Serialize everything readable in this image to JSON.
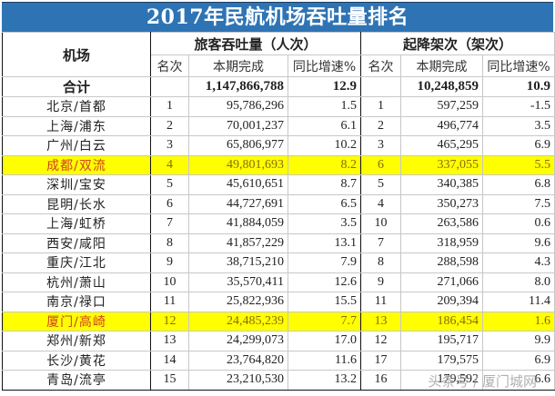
{
  "title": "2017年民航机场吞吐量排名",
  "header": {
    "airport_col": "机场",
    "passenger_group": "旅客吞吐量（人次）",
    "movement_group": "起降架次（架次）",
    "sub": {
      "rank": "名次",
      "current": "本期完成",
      "growth": "同比增速%"
    }
  },
  "total": {
    "label": "合计",
    "passengers": "1,147,866,788",
    "passenger_growth": "12.9",
    "movements": "10,248,859",
    "movement_growth": "10.9"
  },
  "highlight_colors": {
    "row_background": "#ffff00",
    "airport_name": "#d0431e",
    "title_bar": "#2e74b5"
  },
  "rows": [
    {
      "airport": "北京/首都",
      "p_rank": "1",
      "passengers": "95,786,296",
      "p_growth": "1.5",
      "m_rank": "1",
      "movements": "597,259",
      "m_growth": "-1.5",
      "highlight": false
    },
    {
      "airport": "上海/浦东",
      "p_rank": "2",
      "passengers": "70,001,237",
      "p_growth": "6.1",
      "m_rank": "2",
      "movements": "496,774",
      "m_growth": "3.5",
      "highlight": false
    },
    {
      "airport": "广州/白云",
      "p_rank": "3",
      "passengers": "65,806,977",
      "p_growth": "10.2",
      "m_rank": "3",
      "movements": "465,295",
      "m_growth": "6.9",
      "highlight": false
    },
    {
      "airport": "成都/双流",
      "p_rank": "4",
      "passengers": "49,801,693",
      "p_growth": "8.2",
      "m_rank": "6",
      "movements": "337,055",
      "m_growth": "5.5",
      "highlight": true
    },
    {
      "airport": "深圳/宝安",
      "p_rank": "5",
      "passengers": "45,610,651",
      "p_growth": "8.7",
      "m_rank": "5",
      "movements": "340,385",
      "m_growth": "6.8",
      "highlight": false
    },
    {
      "airport": "昆明/长水",
      "p_rank": "6",
      "passengers": "44,727,691",
      "p_growth": "6.5",
      "m_rank": "4",
      "movements": "350,273",
      "m_growth": "7.5",
      "highlight": false
    },
    {
      "airport": "上海/虹桥",
      "p_rank": "7",
      "passengers": "41,884,059",
      "p_growth": "3.5",
      "m_rank": "10",
      "movements": "263,586",
      "m_growth": "0.6",
      "highlight": false
    },
    {
      "airport": "西安/咸阳",
      "p_rank": "8",
      "passengers": "41,857,229",
      "p_growth": "13.1",
      "m_rank": "7",
      "movements": "318,959",
      "m_growth": "9.6",
      "highlight": false
    },
    {
      "airport": "重庆/江北",
      "p_rank": "9",
      "passengers": "38,715,210",
      "p_growth": "7.9",
      "m_rank": "8",
      "movements": "288,598",
      "m_growth": "4.3",
      "highlight": false
    },
    {
      "airport": "杭州/萧山",
      "p_rank": "10",
      "passengers": "35,570,411",
      "p_growth": "12.6",
      "m_rank": "9",
      "movements": "271,066",
      "m_growth": "8.0",
      "highlight": false
    },
    {
      "airport": "南京/禄口",
      "p_rank": "11",
      "passengers": "25,822,936",
      "p_growth": "15.5",
      "m_rank": "11",
      "movements": "209,394",
      "m_growth": "11.4",
      "highlight": false
    },
    {
      "airport": "厦门/高崎",
      "p_rank": "12",
      "passengers": "24,485,239",
      "p_growth": "7.7",
      "m_rank": "13",
      "movements": "186,454",
      "m_growth": "1.6",
      "highlight": true
    },
    {
      "airport": "郑州/新郑",
      "p_rank": "13",
      "passengers": "24,299,073",
      "p_growth": "17.0",
      "m_rank": "12",
      "movements": "195,717",
      "m_growth": "9.9",
      "highlight": false
    },
    {
      "airport": "长沙/黄花",
      "p_rank": "14",
      "passengers": "23,764,820",
      "p_growth": "11.6",
      "m_rank": "17",
      "movements": "179,575",
      "m_growth": "6.9",
      "highlight": false
    },
    {
      "airport": "青岛/流亭",
      "p_rank": "15",
      "passengers": "23,210,530",
      "p_growth": "13.2",
      "m_rank": "16",
      "movements": "179,592",
      "m_growth": "6.6",
      "highlight": false
    }
  ],
  "watermark": "头条号 / 厦门城网"
}
